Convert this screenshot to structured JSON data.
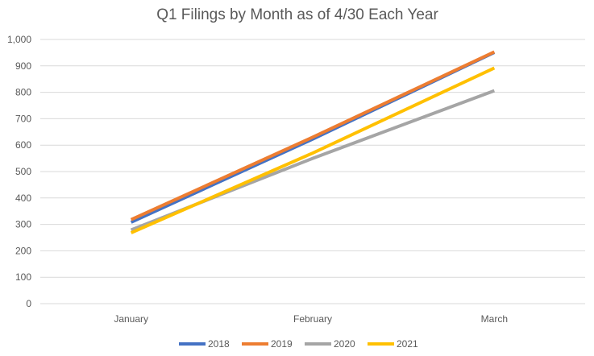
{
  "chart_data": {
    "type": "line",
    "title": "Q1 Filings by Month as of 4/30 Each Year",
    "xlabel": "",
    "ylabel": "",
    "categories": [
      "January",
      "February",
      "March"
    ],
    "ylim": [
      0,
      1000
    ],
    "yticks": [
      "0",
      "100",
      "200",
      "300",
      "400",
      "500",
      "600",
      "700",
      "800",
      "900",
      "1,000"
    ],
    "ytick_values": [
      0,
      100,
      200,
      300,
      400,
      500,
      600,
      700,
      800,
      900,
      1000
    ],
    "grid": true,
    "legend": "bottom",
    "series": [
      {
        "name": "2018",
        "color": "#4472C4",
        "values": [
          308,
          623,
          951
        ]
      },
      {
        "name": "2019",
        "color": "#ED7D31",
        "values": [
          318,
          630,
          953
        ]
      },
      {
        "name": "2020",
        "color": "#A5A5A5",
        "values": [
          279,
          550,
          806
        ]
      },
      {
        "name": "2021",
        "color": "#FFC000",
        "values": [
          268,
          570,
          892
        ]
      }
    ]
  }
}
